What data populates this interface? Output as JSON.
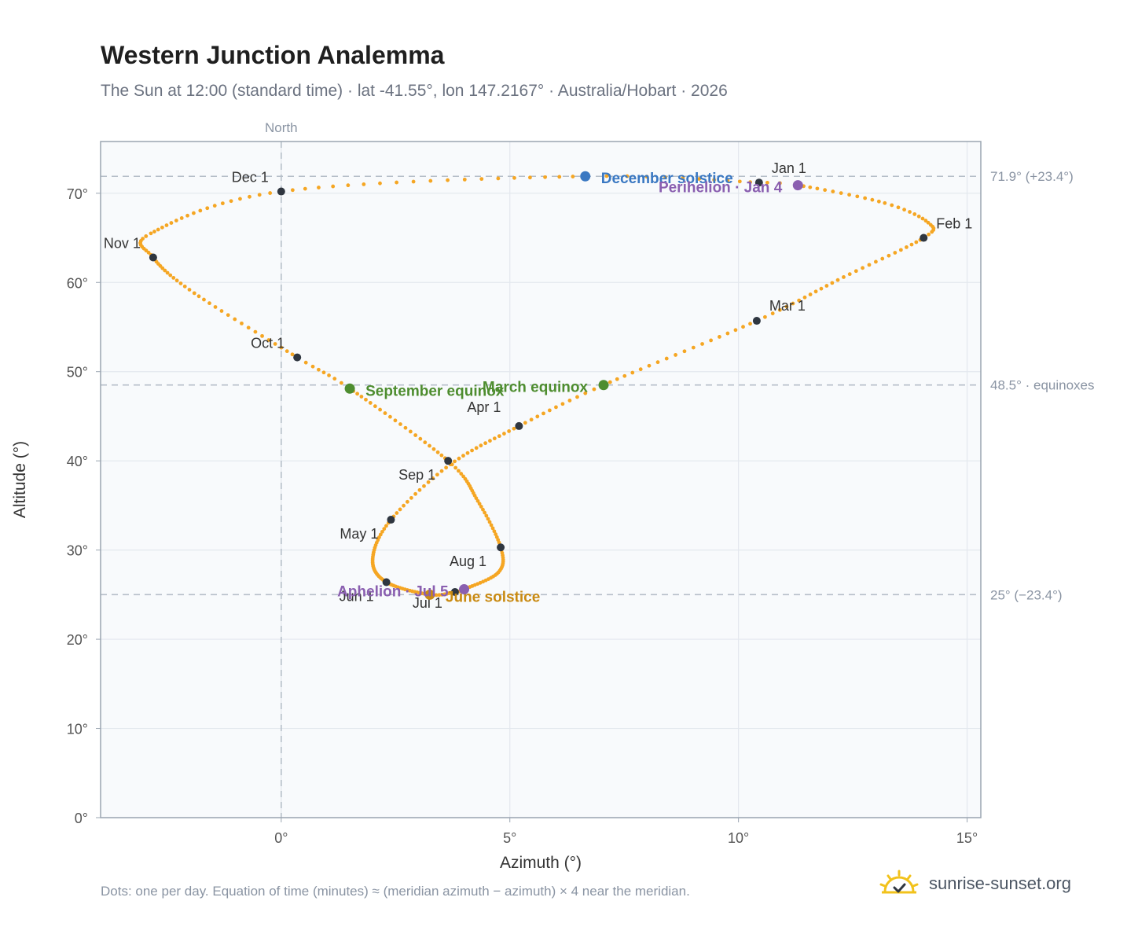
{
  "title": "Western Junction Analemma",
  "subtitle": "The Sun at 12:00 (standard time) · lat -41.55°, lon 147.2167° · Australia/Hobart · 2026",
  "footnote": "Dots: one per day. Equation of time (minutes) ≈ (meridian azimuth − azimuth) × 4 near the meridian.",
  "brand": {
    "name": "sunrise-sunset.org",
    "icon": "sun-logo-icon"
  },
  "colors": {
    "curve": "#f5a623",
    "month_dot": "#2f3640",
    "december_solstice": "#3a78c2",
    "june_solstice": "#c98a12",
    "equinox": "#4e8d2f",
    "apsis": "#8a5fb0",
    "reference_line": "#b6bfc9",
    "plot_bg": "#f8fafc",
    "grid": "#e3e8ee"
  },
  "chart_data": {
    "type": "scatter",
    "xlabel": "Azimuth (°)",
    "ylabel": "Altitude (°)",
    "xlim": [
      -3.95,
      15.3
    ],
    "ylim": [
      0,
      75.8
    ],
    "x_ticks": [
      0,
      5,
      10,
      15
    ],
    "x_tick_labels": [
      "0°",
      "5°",
      "10°",
      "15°"
    ],
    "y_ticks": [
      0,
      10,
      20,
      30,
      40,
      50,
      60,
      70
    ],
    "y_tick_labels": [
      "0°",
      "10°",
      "20°",
      "30°",
      "40°",
      "50°",
      "60°",
      "70°"
    ],
    "grid": true,
    "vertical_reference": {
      "x": 0,
      "label": "North"
    },
    "horizontal_references": [
      {
        "y": 71.9,
        "label": "71.9° (+23.4°)"
      },
      {
        "y": 48.5,
        "label": "48.5° · equinoxes"
      },
      {
        "y": 25.0,
        "label": "25° (−23.4°)"
      }
    ],
    "month_markers": [
      {
        "label": "Jan 1",
        "x": 10.45,
        "y": 71.2
      },
      {
        "label": "Feb 1",
        "x": 14.05,
        "y": 65.0
      },
      {
        "label": "Mar 1",
        "x": 10.4,
        "y": 55.7
      },
      {
        "label": "Apr 1",
        "x": 5.2,
        "y": 43.9
      },
      {
        "label": "May 1",
        "x": 2.4,
        "y": 33.4
      },
      {
        "label": "Jun 1",
        "x": 2.3,
        "y": 26.4
      },
      {
        "label": "Jul 1",
        "x": 3.8,
        "y": 25.3
      },
      {
        "label": "Aug 1",
        "x": 4.8,
        "y": 30.3
      },
      {
        "label": "Sep 1",
        "x": 3.65,
        "y": 40.0
      },
      {
        "label": "Oct 1",
        "x": 0.35,
        "y": 51.6
      },
      {
        "label": "Nov 1",
        "x": -2.8,
        "y": 62.8
      },
      {
        "label": "Dec 1",
        "x": 0.0,
        "y": 70.2
      }
    ],
    "events": [
      {
        "label": "December solstice",
        "x": 6.65,
        "y": 71.9,
        "kind": "december_solstice"
      },
      {
        "label": "Perihelion · Jan 4",
        "x": 11.3,
        "y": 70.9,
        "kind": "apsis"
      },
      {
        "label": "March equinox",
        "x": 7.05,
        "y": 48.5,
        "kind": "equinox"
      },
      {
        "label": "September equinox",
        "x": 1.5,
        "y": 48.1,
        "kind": "equinox"
      },
      {
        "label": "June solstice",
        "x": 3.25,
        "y": 25.0,
        "kind": "june_solstice"
      },
      {
        "label": "Aphelion · Jul 5",
        "x": 4.0,
        "y": 25.6,
        "kind": "apsis"
      }
    ],
    "daily_path_anchors": [
      {
        "day": 0,
        "x": 10.45,
        "y": 71.2
      },
      {
        "day": 3,
        "x": 11.3,
        "y": 70.9
      },
      {
        "day": 15,
        "x": 13.2,
        "y": 68.9
      },
      {
        "day": 24,
        "x": 14.15,
        "y": 66.7
      },
      {
        "day": 31,
        "x": 14.05,
        "y": 65.0
      },
      {
        "day": 45,
        "x": 12.3,
        "y": 60.6
      },
      {
        "day": 59,
        "x": 10.4,
        "y": 55.7
      },
      {
        "day": 78,
        "x": 7.05,
        "y": 48.5
      },
      {
        "day": 90,
        "x": 5.2,
        "y": 43.9
      },
      {
        "day": 105,
        "x": 3.7,
        "y": 39.6
      },
      {
        "day": 120,
        "x": 2.4,
        "y": 33.4
      },
      {
        "day": 135,
        "x": 2.0,
        "y": 29.0
      },
      {
        "day": 151,
        "x": 2.3,
        "y": 26.4
      },
      {
        "day": 171,
        "x": 3.25,
        "y": 25.0
      },
      {
        "day": 181,
        "x": 3.8,
        "y": 25.3
      },
      {
        "day": 185,
        "x": 4.0,
        "y": 25.6
      },
      {
        "day": 200,
        "x": 4.75,
        "y": 27.5
      },
      {
        "day": 212,
        "x": 4.8,
        "y": 30.3
      },
      {
        "day": 228,
        "x": 4.3,
        "y": 35.5
      },
      {
        "day": 243,
        "x": 3.65,
        "y": 40.0
      },
      {
        "day": 265,
        "x": 1.5,
        "y": 48.1
      },
      {
        "day": 273,
        "x": 0.35,
        "y": 51.6
      },
      {
        "day": 290,
        "x": -1.9,
        "y": 58.8
      },
      {
        "day": 304,
        "x": -2.8,
        "y": 62.8
      },
      {
        "day": 315,
        "x": -2.85,
        "y": 65.5
      },
      {
        "day": 334,
        "x": 0.0,
        "y": 70.2
      },
      {
        "day": 354,
        "x": 6.65,
        "y": 71.9
      },
      {
        "day": 365,
        "x": 10.45,
        "y": 71.2
      }
    ]
  }
}
